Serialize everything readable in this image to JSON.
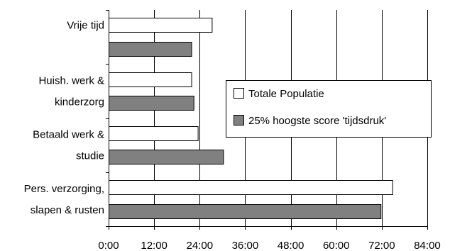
{
  "chart_data": {
    "type": "bar",
    "orientation": "horizontal",
    "title": "",
    "xlabel": "",
    "ylabel": "",
    "categories": [
      [
        "Vrije tijd"
      ],
      [
        "Huish. werk &",
        "kinderzorg"
      ],
      [
        "Betaald werk &",
        "studie"
      ],
      [
        "Pers. verzorging,",
        "slapen & rusten"
      ]
    ],
    "series": [
      {
        "name": "Totale Populatie",
        "color": "#ffffff",
        "values": [
          27.2,
          21.8,
          23.5,
          74.8
        ]
      },
      {
        "name": "25% hoogste score 'tijdsdruk'",
        "color": "#808080",
        "values": [
          21.8,
          22.4,
          30.2,
          71.7
        ]
      }
    ],
    "xlim": [
      0,
      84
    ],
    "x_ticks": [
      0,
      12,
      24,
      36,
      48,
      60,
      72,
      84
    ],
    "x_tick_labels": [
      "0:00",
      "12:00",
      "24:00",
      "36:00",
      "48:00",
      "60:00",
      "72:00",
      "84:00"
    ],
    "grid": "vertical",
    "legend_position": "center-right"
  }
}
